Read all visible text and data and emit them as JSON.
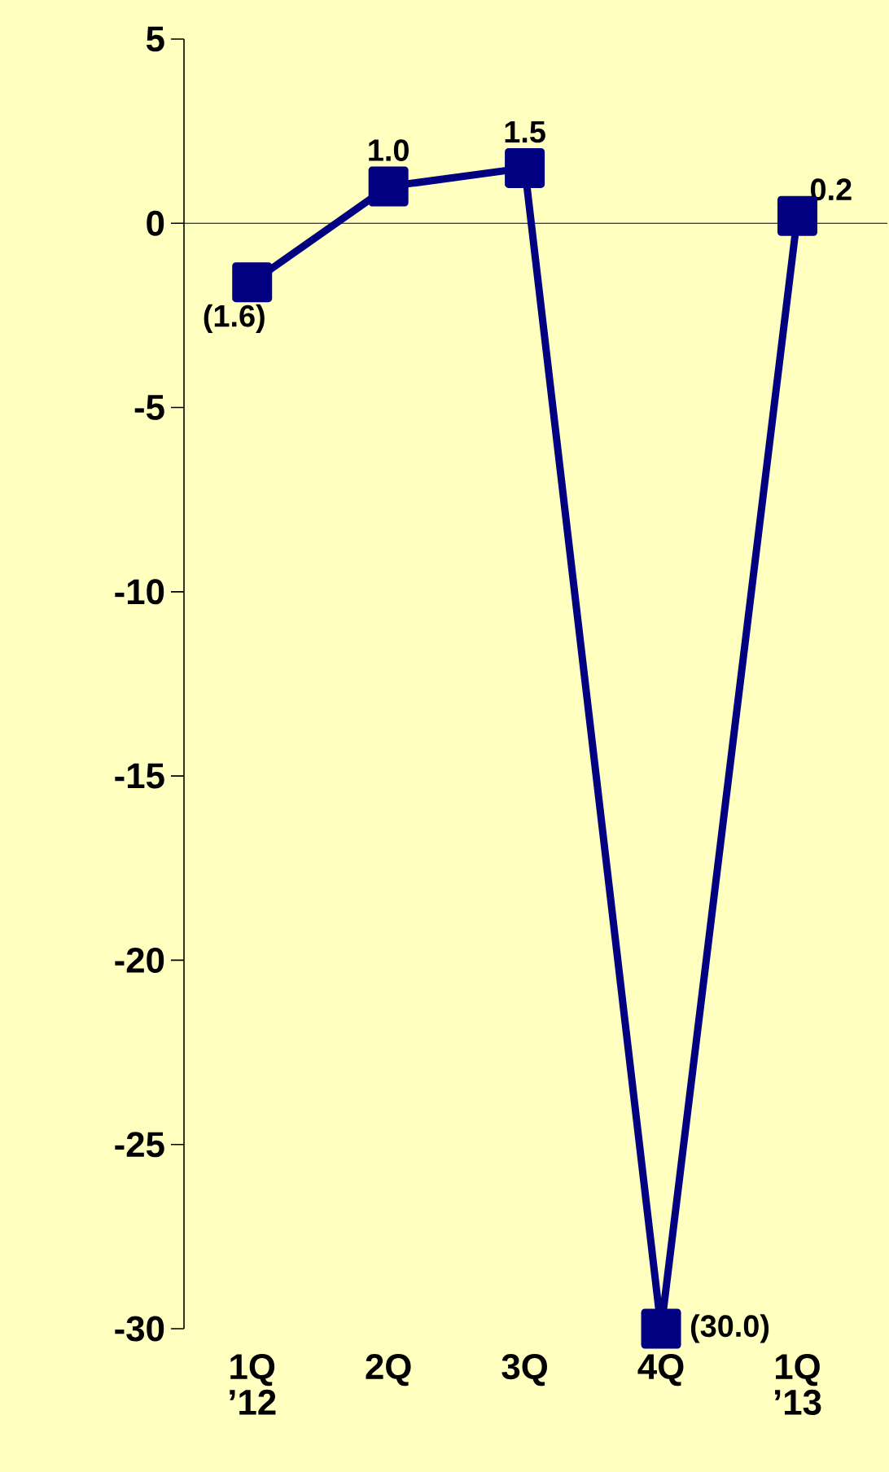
{
  "chart_data": {
    "type": "line",
    "categories": [
      "1Q ’12",
      "2Q",
      "3Q",
      "4Q",
      "1Q ’13"
    ],
    "series": [
      {
        "color": "#000080",
        "values": [
          -1.6,
          1.0,
          1.5,
          -30.0,
          0.2
        ],
        "value_labels": [
          "(1.6)",
          "1.0",
          "1.5",
          "(30.0)",
          "0.2"
        ]
      }
    ],
    "ylim": [
      -30,
      5
    ],
    "yticks": [
      5,
      0,
      -5,
      -10,
      -15,
      -20,
      -25,
      -30
    ],
    "marker": "square",
    "line_style": "solid",
    "grid": false,
    "ref_lines": [
      {
        "axis": "y",
        "value": 0,
        "color": "#000000"
      }
    ]
  }
}
